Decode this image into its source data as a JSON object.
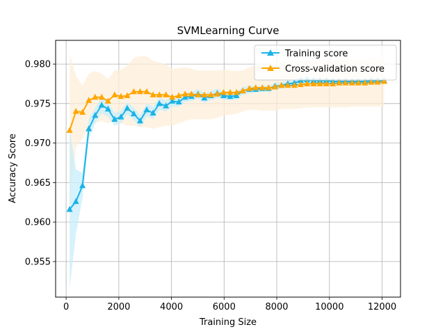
{
  "chart_data": {
    "type": "line",
    "title": "SVMLearning Curve",
    "xlabel": "Training Size",
    "ylabel": "Accuracy Score",
    "xlim": [
      -400,
      12700
    ],
    "ylim": [
      0.9505,
      0.983
    ],
    "xticks": [
      0,
      2000,
      4000,
      6000,
      8000,
      10000,
      12000
    ],
    "xtick_labels": [
      "0",
      "2000",
      "4000",
      "6000",
      "8000",
      "10000",
      "12000"
    ],
    "yticks": [
      0.955,
      0.96,
      0.965,
      0.97,
      0.975,
      0.98
    ],
    "ytick_labels": [
      "0.955",
      "0.960",
      "0.965",
      "0.970",
      "0.975",
      "0.980"
    ],
    "grid": true,
    "legend_position": "top-right",
    "x": [
      130,
      370,
      620,
      860,
      1100,
      1350,
      1590,
      1840,
      2080,
      2320,
      2570,
      2810,
      3060,
      3300,
      3540,
      3790,
      4030,
      4280,
      4520,
      4760,
      5010,
      5250,
      5500,
      5740,
      5980,
      6230,
      6470,
      6710,
      6960,
      7200,
      7450,
      7690,
      7930,
      8180,
      8420,
      8670,
      8910,
      9150,
      9400,
      9640,
      9880,
      10130,
      10370,
      10610,
      10860,
      11100,
      11350,
      11590,
      11830,
      12080
    ],
    "series": [
      {
        "name": "Training score",
        "color": "#1ab3e6",
        "band_color": "#c8eefb",
        "values": [
          0.9616,
          0.9626,
          0.9646,
          0.9718,
          0.9735,
          0.9748,
          0.9743,
          0.973,
          0.9733,
          0.9744,
          0.9737,
          0.9728,
          0.9742,
          0.9738,
          0.975,
          0.9747,
          0.9753,
          0.9752,
          0.9758,
          0.9759,
          0.9762,
          0.9757,
          0.976,
          0.9763,
          0.976,
          0.9759,
          0.976,
          0.9766,
          0.9768,
          0.9768,
          0.9769,
          0.9769,
          0.9772,
          0.9773,
          0.9775,
          0.9776,
          0.9779,
          0.978,
          0.9779,
          0.9779,
          0.9779,
          0.9778,
          0.9778,
          0.9778,
          0.9778,
          0.9778,
          0.9778,
          0.9779,
          0.9779,
          0.9779
        ],
        "lower": [
          0.9515,
          0.9585,
          0.963,
          0.9705,
          0.9725,
          0.9738,
          0.9733,
          0.9722,
          0.9725,
          0.9736,
          0.9729,
          0.972,
          0.9734,
          0.973,
          0.9742,
          0.974,
          0.9746,
          0.9746,
          0.9752,
          0.9753,
          0.9756,
          0.9751,
          0.9754,
          0.9757,
          0.9755,
          0.9754,
          0.9755,
          0.9761,
          0.9763,
          0.9764,
          0.9765,
          0.9765,
          0.9768,
          0.9769,
          0.9771,
          0.9772,
          0.9775,
          0.9776,
          0.9776,
          0.9776,
          0.9776,
          0.9775,
          0.9775,
          0.9775,
          0.9775,
          0.9775,
          0.9775,
          0.9776,
          0.9776,
          0.9776
        ],
        "upper": [
          0.9717,
          0.9667,
          0.9662,
          0.9731,
          0.9745,
          0.9758,
          0.9753,
          0.9738,
          0.9741,
          0.9752,
          0.9745,
          0.9736,
          0.975,
          0.9746,
          0.9758,
          0.9754,
          0.976,
          0.9758,
          0.9764,
          0.9765,
          0.9768,
          0.9763,
          0.9766,
          0.9769,
          0.9765,
          0.9764,
          0.9765,
          0.9771,
          0.9773,
          0.9772,
          0.9773,
          0.9773,
          0.9776,
          0.9777,
          0.9779,
          0.978,
          0.9783,
          0.9784,
          0.9782,
          0.9782,
          0.9782,
          0.9781,
          0.9781,
          0.9781,
          0.9781,
          0.9781,
          0.9781,
          0.9782,
          0.9782,
          0.9782
        ]
      },
      {
        "name": "Cross-validation score",
        "color": "#ffa500",
        "band_color": "#fdefd9",
        "values": [
          0.9716,
          0.974,
          0.9739,
          0.9754,
          0.9758,
          0.9758,
          0.9753,
          0.9761,
          0.9759,
          0.976,
          0.9765,
          0.9765,
          0.9765,
          0.9761,
          0.9761,
          0.9761,
          0.9758,
          0.976,
          0.9762,
          0.9762,
          0.9761,
          0.9761,
          0.9761,
          0.9762,
          0.9764,
          0.9764,
          0.9764,
          0.9766,
          0.9769,
          0.977,
          0.977,
          0.977,
          0.9771,
          0.9773,
          0.9773,
          0.9773,
          0.9774,
          0.9775,
          0.9775,
          0.9775,
          0.9775,
          0.9775,
          0.9776,
          0.9776,
          0.9776,
          0.9776,
          0.9776,
          0.9777,
          0.9777,
          0.9778
        ],
        "lower": [
          0.962,
          0.9695,
          0.9705,
          0.972,
          0.9725,
          0.9728,
          0.9725,
          0.973,
          0.9725,
          0.9722,
          0.9722,
          0.972,
          0.972,
          0.9718,
          0.972,
          0.9722,
          0.9722,
          0.9725,
          0.9728,
          0.973,
          0.973,
          0.973,
          0.973,
          0.9732,
          0.9735,
          0.9736,
          0.9737,
          0.974,
          0.9742,
          0.9742,
          0.9741,
          0.9741,
          0.9741,
          0.9743,
          0.9743,
          0.9743,
          0.9744,
          0.9745,
          0.9745,
          0.9745,
          0.9745,
          0.9745,
          0.9745,
          0.9745,
          0.9746,
          0.9746,
          0.9746,
          0.9746,
          0.9746,
          0.9746
        ],
        "upper": [
          0.9813,
          0.9785,
          0.9773,
          0.9788,
          0.9791,
          0.9788,
          0.9781,
          0.9792,
          0.9793,
          0.9798,
          0.9808,
          0.981,
          0.981,
          0.9804,
          0.9802,
          0.98,
          0.9794,
          0.9795,
          0.9796,
          0.9794,
          0.9792,
          0.9792,
          0.9792,
          0.9792,
          0.9793,
          0.9792,
          0.9791,
          0.9792,
          0.9796,
          0.9798,
          0.9799,
          0.9799,
          0.9801,
          0.9803,
          0.9803,
          0.9803,
          0.9804,
          0.9805,
          0.9805,
          0.9805,
          0.9805,
          0.9805,
          0.9807,
          0.9807,
          0.9806,
          0.9806,
          0.9806,
          0.9808,
          0.9808,
          0.981
        ]
      }
    ]
  }
}
